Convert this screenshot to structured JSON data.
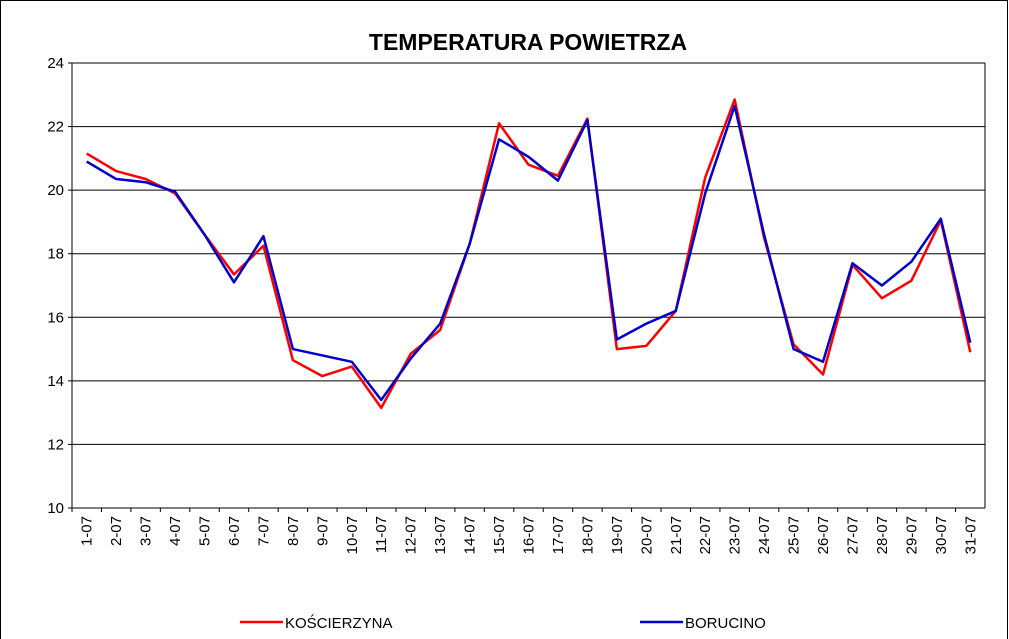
{
  "chart_data": {
    "type": "line",
    "title": "TEMPERATURA POWIETRZA",
    "categories": [
      "1-07",
      "2-07",
      "3-07",
      "4-07",
      "5-07",
      "6-07",
      "7-07",
      "8-07",
      "9-07",
      "10-07",
      "11-07",
      "12-07",
      "13-07",
      "14-07",
      "15-07",
      "16-07",
      "17-07",
      "18-07",
      "19-07",
      "20-07",
      "21-07",
      "22-07",
      "23-07",
      "24-07",
      "25-07",
      "26-07",
      "27-07",
      "28-07",
      "29-07",
      "30-07",
      "31-07"
    ],
    "series": [
      {
        "name": "KOŚCIERZYNA",
        "color": "#ff0000",
        "values": [
          21.15,
          20.6,
          20.35,
          19.9,
          18.6,
          17.35,
          18.25,
          14.65,
          14.15,
          14.45,
          13.15,
          14.85,
          15.6,
          18.3,
          22.1,
          20.8,
          20.45,
          22.25,
          15.0,
          15.1,
          16.2,
          20.4,
          22.85,
          18.5,
          15.15,
          14.2,
          17.65,
          16.6,
          17.15,
          19.05,
          14.9
        ]
      },
      {
        "name": "BORUCINO",
        "color": "#0000cc",
        "values": [
          20.9,
          20.35,
          20.25,
          19.95,
          18.6,
          17.1,
          18.55,
          15.0,
          14.8,
          14.6,
          13.4,
          14.7,
          15.8,
          18.3,
          21.6,
          21.05,
          20.3,
          22.2,
          15.3,
          15.8,
          16.2,
          19.9,
          22.65,
          18.6,
          15.0,
          14.6,
          17.7,
          17.0,
          17.75,
          19.1,
          15.2
        ]
      }
    ],
    "ylim": [
      10,
      24
    ],
    "yticks": [
      10,
      12,
      14,
      16,
      18,
      20,
      22,
      24
    ],
    "grid": true,
    "legend": "bottom"
  }
}
